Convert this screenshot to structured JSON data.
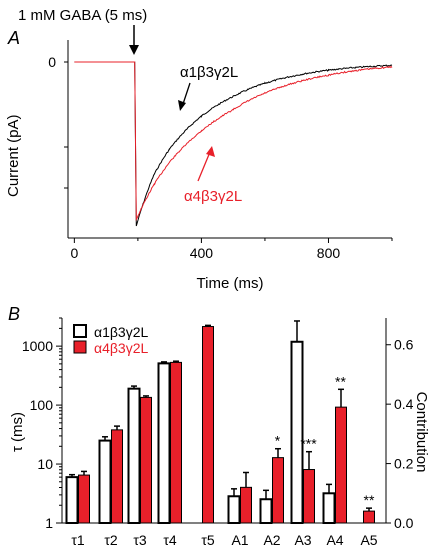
{
  "panel_a": {
    "letter": "A",
    "stimulus_label": "1 mM GABA (5 ms)",
    "ylabel": "Current (pA)",
    "xlabel": "Time (ms)",
    "xticks": [
      "0",
      "400",
      "800"
    ],
    "yticks": [
      "0"
    ],
    "series_labels": [
      "α1β3γ2L",
      "α4β3γ2L"
    ]
  },
  "panel_b": {
    "letter": "B",
    "ylabel_left": "τ (ms)",
    "ylabel_right": "Contribution",
    "yticks_left": [
      "1",
      "10",
      "100",
      "1000"
    ],
    "yticks_right": [
      "0.0",
      "0.2",
      "0.4",
      "0.6"
    ],
    "legend": [
      "α1β3γ2L",
      "α4β3γ2L"
    ],
    "x_categories": [
      "τ1",
      "τ2",
      "τ3",
      "τ4",
      "τ5",
      "A1",
      "A2",
      "A3",
      "A4",
      "A5"
    ]
  },
  "chart_data": [
    {
      "type": "line",
      "title": "",
      "xlabel": "Time (ms)",
      "ylabel": "Current (pA)",
      "xlim": [
        -20,
        1000
      ],
      "annotation": "1 mM GABA (5 ms)",
      "stimulus_time_ms": 190,
      "series": [
        {
          "name": "α1β3γ2L",
          "color": "#000000",
          "x": [
            0,
            190,
            195,
            250,
            300,
            400,
            500,
            600,
            800,
            1000
          ],
          "y": [
            0,
            0,
            -1.0,
            -0.69,
            -0.53,
            -0.33,
            -0.21,
            -0.13,
            -0.05,
            -0.02
          ]
        },
        {
          "name": "α4β3γ2L",
          "color": "#e8202a",
          "x": [
            0,
            190,
            195,
            250,
            300,
            400,
            500,
            600,
            800,
            1000
          ],
          "y": [
            0,
            0,
            -0.96,
            -0.75,
            -0.61,
            -0.42,
            -0.29,
            -0.19,
            -0.08,
            -0.03
          ]
        }
      ]
    },
    {
      "type": "bar",
      "title": "",
      "categories": [
        "τ1",
        "τ2",
        "τ3",
        "τ4",
        "τ5"
      ],
      "ylabel": "τ (ms)",
      "yscale": "log",
      "ylim": [
        1,
        3000
      ],
      "series": [
        {
          "name": "α1β3γ2L",
          "color": "#ffffff",
          "values": [
            6,
            25,
            190,
            510,
            null
          ],
          "errors": [
            0.6,
            4,
            20,
            30,
            null
          ]
        },
        {
          "name": "α4β3γ2L",
          "color": "#e8202a",
          "values": [
            6.5,
            38,
            135,
            530,
            2150
          ],
          "errors": [
            1,
            6,
            8,
            25,
            100
          ]
        }
      ]
    },
    {
      "type": "bar",
      "title": "",
      "categories": [
        "A1",
        "A2",
        "A3",
        "A4",
        "A5"
      ],
      "ylabel": "Contribution",
      "ylim": [
        0,
        0.69
      ],
      "series": [
        {
          "name": "α1β3γ2L",
          "color": "#ffffff",
          "values": [
            0.09,
            0.08,
            0.61,
            0.1,
            null
          ],
          "errors": [
            0.025,
            0.03,
            0.07,
            0.03,
            null
          ]
        },
        {
          "name": "α4β3γ2L",
          "color": "#e8202a",
          "values": [
            0.12,
            0.22,
            0.18,
            0.39,
            0.04
          ],
          "errors": [
            0.05,
            0.03,
            0.06,
            0.06,
            0.01
          ]
        }
      ],
      "significance": [
        "",
        "*",
        "***",
        "**",
        "**"
      ]
    }
  ]
}
